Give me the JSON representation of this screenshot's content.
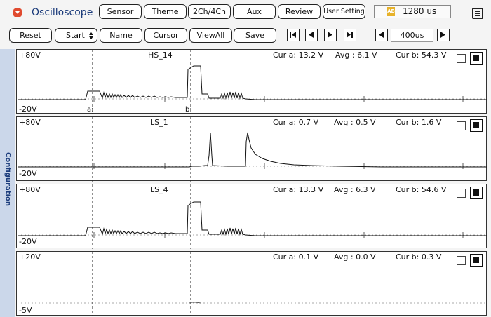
{
  "app": {
    "title": "Oscilloscope"
  },
  "toolbar": {
    "sensor": "Sensor",
    "theme": "Theme",
    "channels": "2Ch/4Ch",
    "aux": "Aux",
    "review": "Review",
    "user_setting": "User Setting",
    "time_value": "1280 us",
    "reset": "Reset",
    "start": "Start",
    "name": "Name",
    "cursor": "Cursor",
    "view_all": "ViewAll",
    "save": "Save",
    "zoom_value": "400us"
  },
  "sidebar": {
    "label": "Configuration"
  },
  "channels": [
    {
      "name": "HS_14",
      "top": "+80V",
      "bottom": "-20V",
      "cur_a": "Cur a: 13.2 V",
      "avg": "Avg : 6.1 V",
      "cur_b": "Cur b: 54.3 V",
      "cursor_a": "a:",
      "cursor_b": "b:"
    },
    {
      "name": "LS_1",
      "top": "+80V",
      "bottom": "-20V",
      "cur_a": "Cur a: 0.7 V",
      "avg": "Avg : 0.5 V",
      "cur_b": "Cur b: 1.6 V"
    },
    {
      "name": "LS_4",
      "top": "+80V",
      "bottom": "-20V",
      "cur_a": "Cur a: 13.3 V",
      "avg": "Avg : 6.3 V",
      "cur_b": "Cur b: 54.6 V"
    },
    {
      "name": "",
      "top": "+20V",
      "bottom": "-5V",
      "cur_a": "Cur a: 0.1 V",
      "avg": "Avg : 0.0 V",
      "cur_b": "Cur b: 0.3 V"
    }
  ],
  "colors": {
    "accent": "#e04a2f",
    "title": "#1a3a7a",
    "sidebar": "#cbd7ea",
    "time_icon": "#e7b22a"
  }
}
